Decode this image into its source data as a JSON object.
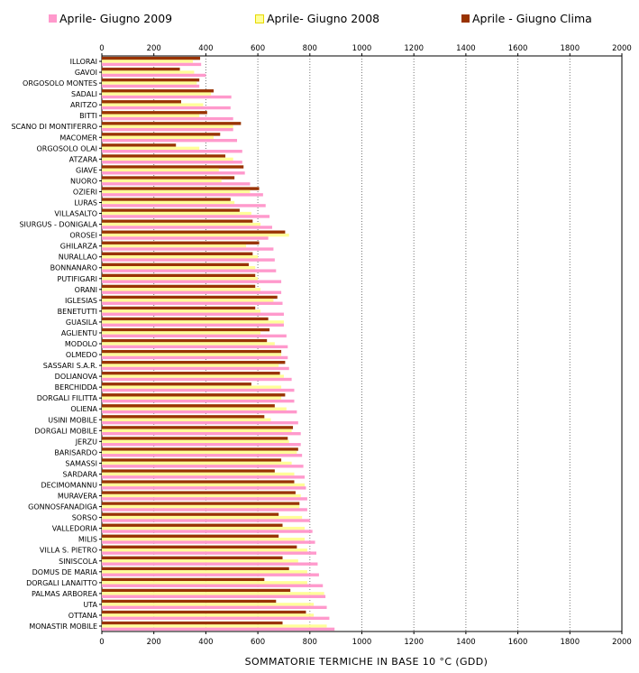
{
  "chart_data": {
    "type": "bar",
    "orientation": "horizontal",
    "xlabel": "SOMMATORIE TERMICHE IN BASE 10 °C (GDD)",
    "xlim": [
      0,
      2000
    ],
    "xticks": [
      0,
      200,
      400,
      600,
      800,
      1000,
      1200,
      1400,
      1600,
      1800,
      2000
    ],
    "grid": "vertical dotted",
    "legend_position": "top",
    "categories": [
      "ILLORAI",
      "GAVOI",
      "ORGOSOLO MONTES",
      "SADALI",
      "ARITZO",
      "BITTI",
      "SCANO DI MONTIFERRO",
      "MACOMER",
      "ORGOSOLO OLAI",
      "ATZARA",
      "GIAVE",
      "NUORO",
      "OZIERI",
      "LURAS",
      "VILLASALTO",
      "SIURGUS - DONIGALA",
      "OROSEI",
      "GHILARZA",
      "NURALLAO",
      "BONNANARO",
      "PUTIFIGARI",
      "ORANI",
      "IGLESIAS",
      "BENETUTTI",
      "GUASILA",
      "AGLIENTU",
      "MODOLO",
      "OLMEDO",
      "SASSARI S.A.R.",
      "DOLIANOVA",
      "BERCHIDDA",
      "DORGALI FILITTA",
      "OLIENA",
      "USINI MOBILE",
      "DORGALI MOBILE",
      "JERZU",
      "BARISARDO",
      "SAMASSI",
      "SARDARA",
      "DECIMOMANNU",
      "MURAVERA",
      "GONNOSFANADIGA",
      "SORSO",
      "VALLEDORIA",
      "MILIS",
      "VILLA S. PIETRO",
      "SINISCOLA",
      "DOMUS DE MARIA",
      "DORGALI LANAITTO",
      "PALMAS ARBOREA",
      "UTA",
      "OTTANA",
      "MONASTIR MOBILE"
    ],
    "series": [
      {
        "name": "Aprile- Giugno 2009",
        "color": "#ff99cc",
        "values": [
          382,
          400,
          375,
          498,
          495,
          505,
          505,
          520,
          540,
          540,
          550,
          570,
          620,
          630,
          645,
          655,
          640,
          660,
          665,
          670,
          690,
          690,
          695,
          700,
          700,
          710,
          715,
          715,
          720,
          730,
          740,
          740,
          750,
          755,
          765,
          765,
          770,
          775,
          780,
          785,
          790,
          790,
          800,
          810,
          820,
          825,
          830,
          835,
          850,
          860,
          865,
          875,
          895
        ]
      },
      {
        "name": "Aprile- Giugno 2008",
        "color": "#ffff99",
        "values": [
          350,
          355,
          365,
          420,
          390,
          375,
          505,
          430,
          375,
          505,
          450,
          460,
          570,
          510,
          575,
          610,
          720,
          555,
          600,
          590,
          600,
          610,
          660,
          610,
          700,
          610,
          665,
          690,
          680,
          700,
          690,
          690,
          710,
          650,
          730,
          720,
          750,
          730,
          740,
          780,
          765,
          760,
          770,
          780,
          780,
          790,
          755,
          790,
          790,
          855,
          815,
          815,
          865
        ]
      },
      {
        "name": "Aprile - Giugno Clima",
        "color": "#993300",
        "values": [
          378,
          300,
          375,
          430,
          305,
          405,
          535,
          455,
          285,
          475,
          545,
          510,
          605,
          495,
          530,
          580,
          705,
          605,
          580,
          565,
          590,
          590,
          675,
          590,
          640,
          645,
          635,
          690,
          705,
          685,
          575,
          705,
          665,
          625,
          735,
          715,
          755,
          690,
          665,
          740,
          745,
          760,
          680,
          695,
          680,
          750,
          695,
          720,
          625,
          725,
          670,
          785,
          695
        ]
      }
    ]
  }
}
